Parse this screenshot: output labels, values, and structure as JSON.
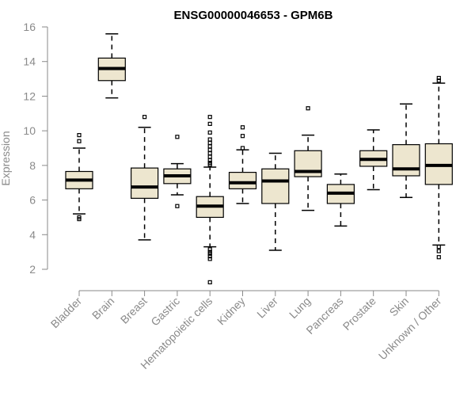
{
  "chart_data": {
    "type": "boxplot",
    "title": "ENSG00000046653 - GPM6B",
    "xlabel": "",
    "ylabel": "Expression",
    "ylim": [
      1.5,
      16
    ],
    "yticks": [
      2,
      4,
      6,
      8,
      10,
      12,
      14,
      16
    ],
    "categories": [
      "Bladder",
      "Brain",
      "Breast",
      "Gastric",
      "Hematopoietic cells",
      "Kidney",
      "Liver",
      "Lung",
      "Pancreas",
      "Prostate",
      "Skin",
      "Unknown / Other"
    ],
    "box_color": "#ede6cf",
    "boxes": [
      {
        "name": "Bladder",
        "whisker_low": 5.2,
        "q1": 6.65,
        "median": 7.15,
        "q3": 7.65,
        "whisker_high": 9.0,
        "outliers": [
          9.75,
          9.4,
          5.0,
          4.9
        ]
      },
      {
        "name": "Brain",
        "whisker_low": 11.9,
        "q1": 12.9,
        "median": 13.6,
        "q3": 14.2,
        "whisker_high": 15.6,
        "outliers": []
      },
      {
        "name": "Breast",
        "whisker_low": 3.7,
        "q1": 6.1,
        "median": 6.75,
        "q3": 7.85,
        "whisker_high": 10.2,
        "outliers": [
          10.8
        ]
      },
      {
        "name": "Gastric",
        "whisker_low": 6.3,
        "q1": 6.95,
        "median": 7.4,
        "q3": 7.8,
        "whisker_high": 8.1,
        "outliers": [
          9.65,
          5.65
        ]
      },
      {
        "name": "Hematopoietic cells",
        "whisker_low": 3.3,
        "q1": 5.0,
        "median": 5.65,
        "q3": 6.2,
        "whisker_high": 7.9,
        "outliers": [
          10.8,
          10.4,
          9.9,
          9.5,
          9.3,
          9.1,
          8.9,
          8.7,
          8.5,
          8.3,
          8.15,
          8.05,
          3.15,
          3.0,
          2.9,
          2.75,
          2.6,
          1.25
        ]
      },
      {
        "name": "Kidney",
        "whisker_low": 5.8,
        "q1": 6.65,
        "median": 7.0,
        "q3": 7.6,
        "whisker_high": 8.9,
        "outliers": [
          10.2,
          9.7,
          9.0
        ]
      },
      {
        "name": "Liver",
        "whisker_low": 3.1,
        "q1": 5.8,
        "median": 7.1,
        "q3": 7.8,
        "whisker_high": 8.7,
        "outliers": []
      },
      {
        "name": "Lung",
        "whisker_low": 5.4,
        "q1": 7.35,
        "median": 7.65,
        "q3": 8.85,
        "whisker_high": 9.75,
        "outliers": [
          11.3
        ]
      },
      {
        "name": "Pancreas",
        "whisker_low": 4.5,
        "q1": 5.8,
        "median": 6.4,
        "q3": 6.9,
        "whisker_high": 7.5,
        "outliers": []
      },
      {
        "name": "Prostate",
        "whisker_low": 6.6,
        "q1": 7.95,
        "median": 8.35,
        "q3": 8.85,
        "whisker_high": 10.05,
        "outliers": []
      },
      {
        "name": "Skin",
        "whisker_low": 6.15,
        "q1": 7.4,
        "median": 7.8,
        "q3": 9.2,
        "whisker_high": 11.55,
        "outliers": []
      },
      {
        "name": "Unknown / Other",
        "whisker_low": 3.4,
        "q1": 6.9,
        "median": 8.0,
        "q3": 9.25,
        "whisker_high": 12.75,
        "outliers": [
          13.05,
          12.9,
          3.3,
          3.05,
          2.7
        ]
      }
    ]
  }
}
